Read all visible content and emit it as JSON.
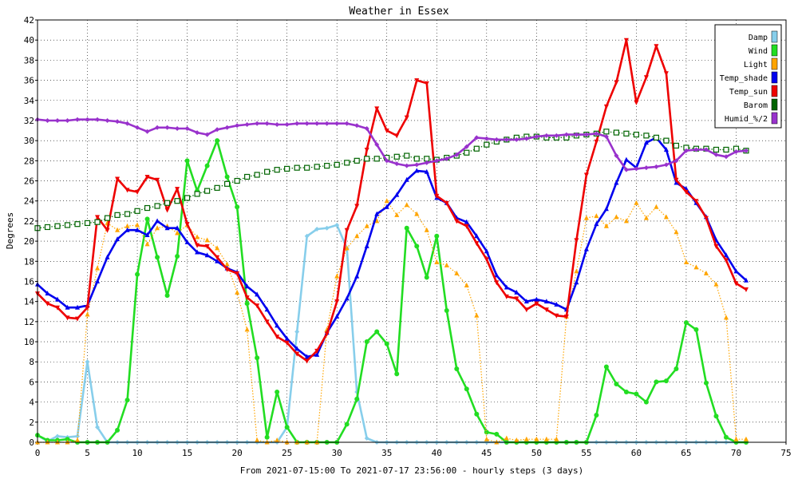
{
  "chart_data": {
    "type": "line",
    "title": "Weather in Essex",
    "xlabel": "From 2021-07-15:00 To 2021-07-17 23:56:00 - hourly steps (3 days)",
    "ylabel": "Degrees",
    "xlim": [
      0,
      75
    ],
    "ylim": [
      0,
      42
    ],
    "xticks": [
      0,
      5,
      10,
      15,
      20,
      25,
      30,
      35,
      40,
      45,
      50,
      55,
      60,
      65,
      70,
      75
    ],
    "yticks": [
      0,
      2,
      4,
      6,
      8,
      10,
      12,
      14,
      16,
      18,
      20,
      22,
      24,
      26,
      28,
      30,
      32,
      34,
      36,
      38,
      40,
      42
    ],
    "grid": true,
    "legend_position": "top-right",
    "series": [
      {
        "name": "Damp",
        "color": "#87CEEB",
        "marker": "diamond",
        "dash": "solid",
        "values": [
          0.7,
          0.1,
          0.6,
          0.5,
          0.6,
          8.0,
          1.5,
          0,
          0,
          0,
          0,
          0,
          0,
          0,
          0,
          0,
          0,
          0,
          0,
          0,
          0,
          0,
          0,
          0,
          0,
          0,
          0,
          0,
          0,
          0,
          0,
          0,
          0,
          0,
          0,
          0,
          0,
          0,
          0,
          0,
          0,
          0,
          0,
          0,
          0,
          0,
          0,
          0,
          0,
          0,
          0,
          0,
          0,
          0,
          0,
          0,
          0,
          0,
          0,
          0,
          0,
          0,
          0,
          0,
          0,
          0,
          0,
          0,
          0,
          0,
          0,
          0
        ],
        "overrides": {
          "25": 1.5,
          "26": 11.0,
          "27": 20.5,
          "28": 21.2,
          "29": 21.3,
          "30": 21.6,
          "31": 19.3,
          "32": 5.0,
          "33": 0.4
        }
      },
      {
        "name": "Wind",
        "color": "#22DD22",
        "marker": "circle",
        "dash": "solid",
        "values": [
          0.7,
          0.2,
          0.2,
          0.3,
          0,
          0,
          0,
          0,
          1.2,
          4.2,
          16.7,
          22.2,
          18.4,
          14.6,
          18.5,
          28.0,
          25.0,
          27.5,
          30.0,
          26.4,
          23.4,
          13.8,
          8.4,
          0.5,
          5.0,
          1.5,
          0,
          0,
          0,
          0,
          0,
          1.8,
          4.3,
          10.0,
          11.0,
          9.8,
          6.8,
          21.3,
          19.5,
          16.4,
          20.5,
          13.1,
          7.3,
          5.3,
          2.8,
          1.0,
          0.8,
          0,
          0,
          0,
          0,
          0,
          0,
          0,
          0,
          0,
          2.7,
          7.5,
          5.8,
          5.0,
          4.8,
          4.0,
          6.0,
          6.1,
          7.3,
          11.9,
          11.2,
          5.9,
          2.6,
          0.5,
          0,
          0
        ]
      },
      {
        "name": "Light",
        "color": "#FFA500",
        "marker": "triangle",
        "dash": "dotted",
        "values": [
          0,
          0,
          0,
          0,
          0.2,
          12.7,
          17.3,
          21.8,
          21.1,
          21.5,
          21.6,
          19.7,
          21.3,
          21.5,
          20.8,
          21.6,
          20.4,
          20.1,
          19.3,
          17.7,
          14.9,
          11.2,
          0.2,
          0,
          0.2,
          0,
          0,
          0,
          0,
          11.2,
          16.5,
          19.3,
          20.5,
          21.5,
          22.0,
          24.0,
          22.6,
          23.6,
          22.7,
          21.1,
          17.9,
          17.6,
          16.8,
          15.6,
          12.6,
          0.3,
          0,
          0.4,
          0.2,
          0.3,
          0.3,
          0.3,
          0.3,
          12.5,
          17.0,
          22.3,
          22.5,
          21.5,
          22.4,
          22.0,
          23.8,
          22.3,
          23.4,
          22.4,
          20.9,
          17.9,
          17.4,
          16.8,
          15.7,
          12.4,
          0.3,
          0.3
        ]
      },
      {
        "name": "Temp_shade",
        "color": "#0000EE",
        "marker": "triangle",
        "dash": "solid",
        "values": [
          15.7,
          14.8,
          14.2,
          13.4,
          13.4,
          13.6,
          16.0,
          18.4,
          20.2,
          21.1,
          21.1,
          20.6,
          22.0,
          21.3,
          21.3,
          19.9,
          18.9,
          18.6,
          18.0,
          17.3,
          16.9,
          15.5,
          14.7,
          13.2,
          11.6,
          10.3,
          9.3,
          8.5,
          8.7,
          10.9,
          12.5,
          14.3,
          16.5,
          19.5,
          22.7,
          23.4,
          24.6,
          26.1,
          27.0,
          26.9,
          24.3,
          23.8,
          22.3,
          21.9,
          20.5,
          19.0,
          16.6,
          15.4,
          14.9,
          14.0,
          14.2,
          14.0,
          13.7,
          13.2,
          15.9,
          19.2,
          21.7,
          23.2,
          25.8,
          28.1,
          27.3,
          29.8,
          30.3,
          29.1,
          25.8,
          25.2,
          23.8,
          22.4,
          20.1,
          18.6,
          17.0,
          16.1
        ]
      },
      {
        "name": "Temp_sun",
        "color": "#EE0000",
        "marker": "triangle-down",
        "dash": "solid",
        "values": [
          14.8,
          13.8,
          13.4,
          12.4,
          12.3,
          13.4,
          22.4,
          21.1,
          26.2,
          25.1,
          24.9,
          26.4,
          26.1,
          23.1,
          25.2,
          21.7,
          19.6,
          19.5,
          18.4,
          17.2,
          16.8,
          14.4,
          13.6,
          12.0,
          10.5,
          9.9,
          8.8,
          8.1,
          9.1,
          10.8,
          14.0,
          21.1,
          23.5,
          29.1,
          33.2,
          31.0,
          30.5,
          32.3,
          36.0,
          35.7,
          24.5,
          23.8,
          22.0,
          21.5,
          19.8,
          18.2,
          15.9,
          14.5,
          14.3,
          13.2,
          13.8,
          13.2,
          12.6,
          12.5,
          20.1,
          26.6,
          29.9,
          33.4,
          35.8,
          40.0,
          33.8,
          36.3,
          39.4,
          36.7,
          26.1,
          24.9,
          24.0,
          22.3,
          19.5,
          18.1,
          15.8,
          15.2
        ]
      },
      {
        "name": "Barom",
        "color": "#006400",
        "marker": "square",
        "dash": "dotted",
        "values": [
          21.3,
          21.4,
          21.5,
          21.6,
          21.7,
          21.8,
          21.9,
          22.3,
          22.6,
          22.7,
          23.0,
          23.3,
          23.5,
          23.8,
          24.0,
          24.3,
          24.7,
          25.0,
          25.3,
          25.7,
          26.0,
          26.4,
          26.6,
          26.9,
          27.1,
          27.2,
          27.3,
          27.3,
          27.4,
          27.5,
          27.6,
          27.8,
          28.0,
          28.2,
          28.2,
          28.3,
          28.4,
          28.5,
          28.2,
          28.2,
          28.1,
          28.3,
          28.5,
          28.8,
          29.2,
          29.6,
          29.9,
          30.1,
          30.3,
          30.4,
          30.4,
          30.3,
          30.3,
          30.3,
          30.5,
          30.6,
          30.7,
          30.9,
          30.8,
          30.7,
          30.6,
          30.5,
          30.3,
          30.0,
          29.5,
          29.3,
          29.2,
          29.2,
          29.1,
          29.1,
          29.2,
          29.0
        ]
      },
      {
        "name": "Humid_%/2",
        "color": "#9932CC",
        "marker": "diamond",
        "dash": "solid",
        "values": [
          32.1,
          32.0,
          32.0,
          32.0,
          32.1,
          32.1,
          32.1,
          32.0,
          31.9,
          31.7,
          31.3,
          30.9,
          31.3,
          31.3,
          31.2,
          31.2,
          30.8,
          30.6,
          31.1,
          31.3,
          31.5,
          31.6,
          31.7,
          31.7,
          31.6,
          31.6,
          31.7,
          31.7,
          31.7,
          31.7,
          31.7,
          31.7,
          31.5,
          31.2,
          29.6,
          28.0,
          27.7,
          27.5,
          27.6,
          27.8,
          28.0,
          28.2,
          28.6,
          29.4,
          30.3,
          30.2,
          30.1,
          30.1,
          30.1,
          30.2,
          30.4,
          30.5,
          30.5,
          30.6,
          30.6,
          30.6,
          30.7,
          30.4,
          28.5,
          27.1,
          27.2,
          27.3,
          27.4,
          27.6,
          28.0,
          29.0,
          29.1,
          29.1,
          28.6,
          28.4,
          28.9,
          29.0
        ]
      }
    ]
  }
}
